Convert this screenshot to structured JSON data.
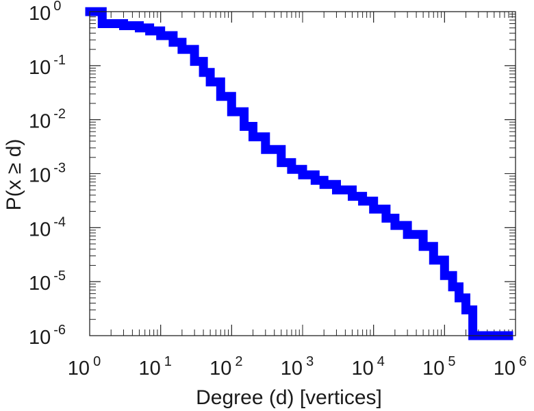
{
  "chart_data": {
    "type": "line",
    "xlabel": "Degree (d) [vertices]",
    "ylabel": "P(x ≥ d)",
    "x_scale": "log",
    "y_scale": "log",
    "xlim": [
      1,
      1000000
    ],
    "ylim": [
      1e-06,
      1
    ],
    "grid": false,
    "x_ticks": [
      {
        "base": "10",
        "exp": "0"
      },
      {
        "base": "10",
        "exp": "1"
      },
      {
        "base": "10",
        "exp": "2"
      },
      {
        "base": "10",
        "exp": "3"
      },
      {
        "base": "10",
        "exp": "4"
      },
      {
        "base": "10",
        "exp": "5"
      },
      {
        "base": "10",
        "exp": "6"
      }
    ],
    "y_ticks": [
      {
        "base": "10",
        "exp": "0"
      },
      {
        "base": "10",
        "exp": "-1"
      },
      {
        "base": "10",
        "exp": "-2"
      },
      {
        "base": "10",
        "exp": "-3"
      },
      {
        "base": "10",
        "exp": "-4"
      },
      {
        "base": "10",
        "exp": "-5"
      },
      {
        "base": "10",
        "exp": "-6"
      }
    ],
    "series": [
      {
        "color": "#0000ff",
        "step": true,
        "x": [
          1,
          1.5,
          2,
          3,
          5,
          7,
          10,
          15,
          20,
          30,
          40,
          50,
          70,
          100,
          150,
          200,
          300,
          500,
          700,
          1000,
          1500,
          2000,
          3000,
          5000,
          7000,
          10000,
          15000,
          20000,
          30000,
          50000,
          70000,
          100000,
          130000,
          160000,
          200000,
          250000,
          500000,
          800000
        ],
        "y": [
          1,
          0.6,
          0.6,
          0.55,
          0.5,
          0.44,
          0.36,
          0.27,
          0.2,
          0.12,
          0.075,
          0.05,
          0.027,
          0.014,
          0.0075,
          0.0048,
          0.0028,
          0.0016,
          0.0012,
          0.00095,
          0.00075,
          0.00063,
          0.0005,
          0.00038,
          0.00031,
          0.00022,
          0.00015,
          0.00011,
          7.5e-05,
          4.5e-05,
          2.5e-05,
          1.3e-05,
          8e-06,
          5e-06,
          3e-06,
          1e-06,
          1e-06,
          1e-06
        ]
      }
    ]
  }
}
